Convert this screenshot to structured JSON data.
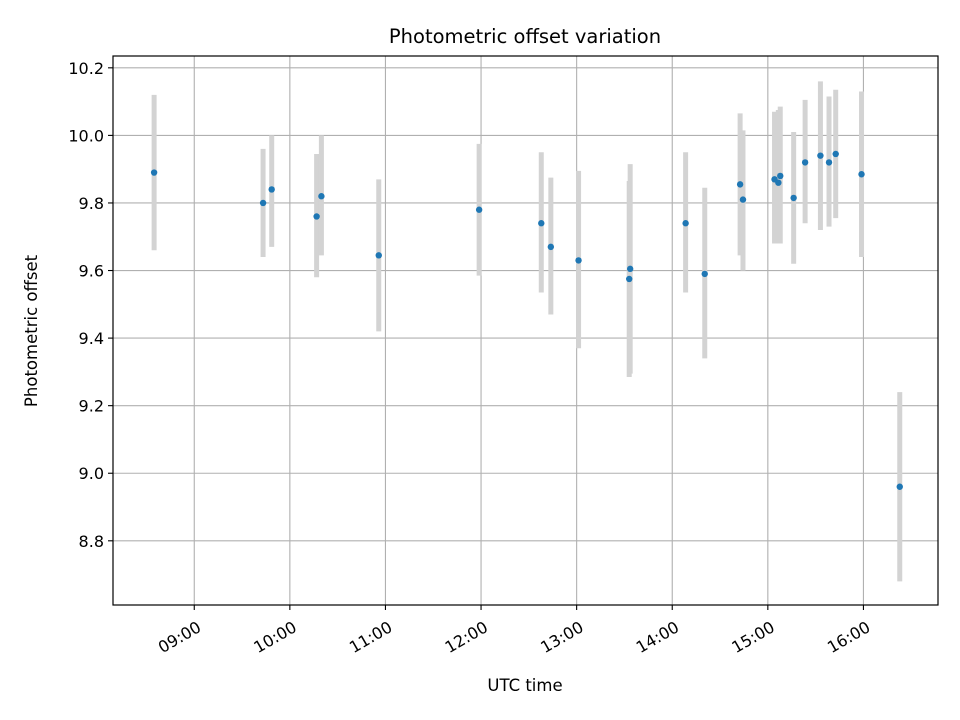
{
  "chart_data": {
    "type": "scatter",
    "title": "Photometric offset variation",
    "xlabel": "UTC time",
    "ylabel": "Photometric offset",
    "grid": true,
    "x_unit": "hours UTC (decimal)",
    "xlim": [
      8.15,
      16.78
    ],
    "ylim": [
      8.61,
      10.235
    ],
    "x_ticks": [
      {
        "value": 9,
        "label": "09:00"
      },
      {
        "value": 10,
        "label": "10:00"
      },
      {
        "value": 11,
        "label": "11:00"
      },
      {
        "value": 12,
        "label": "12:00"
      },
      {
        "value": 13,
        "label": "13:00"
      },
      {
        "value": 14,
        "label": "14:00"
      },
      {
        "value": 15,
        "label": "15:00"
      },
      {
        "value": 16,
        "label": "16:00"
      }
    ],
    "y_ticks": [
      {
        "value": 8.8,
        "label": "8.8"
      },
      {
        "value": 9.0,
        "label": "9.0"
      },
      {
        "value": 9.2,
        "label": "9.2"
      },
      {
        "value": 9.4,
        "label": "9.4"
      },
      {
        "value": 9.6,
        "label": "9.6"
      },
      {
        "value": 9.8,
        "label": "9.8"
      },
      {
        "value": 10.0,
        "label": "10.0"
      },
      {
        "value": 10.2,
        "label": "10.2"
      }
    ],
    "colors": {
      "point": "#1f77b4",
      "errorbar": "#d3d3d3",
      "grid": "#b0b0b0",
      "axis": "#000000"
    },
    "series": [
      {
        "name": "offset",
        "points": [
          {
            "x": 8.58,
            "y": 9.89,
            "lo": 9.66,
            "hi": 10.12
          },
          {
            "x": 9.72,
            "y": 9.8,
            "lo": 9.64,
            "hi": 9.96
          },
          {
            "x": 9.81,
            "y": 9.84,
            "lo": 9.67,
            "hi": 10.0
          },
          {
            "x": 10.28,
            "y": 9.76,
            "lo": 9.58,
            "hi": 9.945
          },
          {
            "x": 10.33,
            "y": 9.82,
            "lo": 9.645,
            "hi": 10.0
          },
          {
            "x": 10.93,
            "y": 9.645,
            "lo": 9.42,
            "hi": 9.87
          },
          {
            "x": 11.98,
            "y": 9.78,
            "lo": 9.585,
            "hi": 9.975
          },
          {
            "x": 12.63,
            "y": 9.74,
            "lo": 9.535,
            "hi": 9.95
          },
          {
            "x": 12.73,
            "y": 9.67,
            "lo": 9.47,
            "hi": 9.875
          },
          {
            "x": 13.02,
            "y": 9.63,
            "lo": 9.37,
            "hi": 9.895
          },
          {
            "x": 13.55,
            "y": 9.575,
            "lo": 9.285,
            "hi": 9.865
          },
          {
            "x": 13.56,
            "y": 9.605,
            "lo": 9.295,
            "hi": 9.915
          },
          {
            "x": 14.14,
            "y": 9.74,
            "lo": 9.535,
            "hi": 9.95
          },
          {
            "x": 14.34,
            "y": 9.59,
            "lo": 9.34,
            "hi": 9.845
          },
          {
            "x": 14.71,
            "y": 9.855,
            "lo": 9.645,
            "hi": 10.065
          },
          {
            "x": 14.74,
            "y": 9.81,
            "lo": 9.6,
            "hi": 10.015
          },
          {
            "x": 15.07,
            "y": 9.87,
            "lo": 9.68,
            "hi": 10.07
          },
          {
            "x": 15.11,
            "y": 9.86,
            "lo": 9.68,
            "hi": 10.075
          },
          {
            "x": 15.13,
            "y": 9.88,
            "lo": 9.68,
            "hi": 10.085
          },
          {
            "x": 15.27,
            "y": 9.815,
            "lo": 9.62,
            "hi": 10.01
          },
          {
            "x": 15.39,
            "y": 9.92,
            "lo": 9.74,
            "hi": 10.105
          },
          {
            "x": 15.55,
            "y": 9.94,
            "lo": 9.72,
            "hi": 10.16
          },
          {
            "x": 15.64,
            "y": 9.92,
            "lo": 9.73,
            "hi": 10.115
          },
          {
            "x": 15.71,
            "y": 9.945,
            "lo": 9.755,
            "hi": 10.135
          },
          {
            "x": 15.98,
            "y": 9.885,
            "lo": 9.64,
            "hi": 10.13
          },
          {
            "x": 16.38,
            "y": 8.96,
            "lo": 8.68,
            "hi": 9.24
          }
        ]
      }
    ]
  }
}
